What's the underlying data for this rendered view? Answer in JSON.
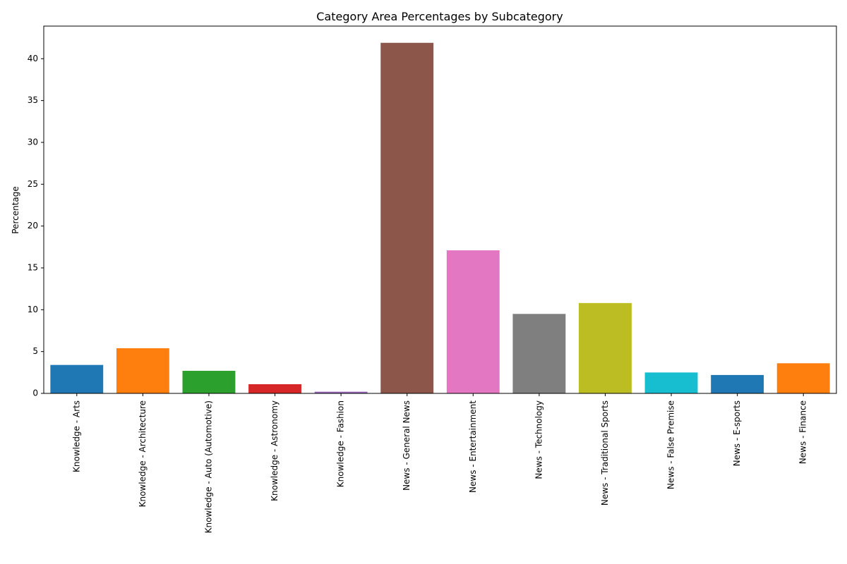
{
  "chart_data": {
    "type": "bar",
    "title": "Category Area Percentages by Subcategory",
    "xlabel": "",
    "ylabel": "Percentage",
    "ylim": [
      0,
      43.9
    ],
    "yticks": [
      0,
      5,
      10,
      15,
      20,
      25,
      30,
      35,
      40
    ],
    "grid": false,
    "categories": [
      "Knowledge - Arts",
      "Knowledge - Architecture",
      "Knowledge - Auto (Automotive)",
      "Knowledge - Astronomy",
      "Knowledge - Fashion",
      "News - General News",
      "News - Entertainment",
      "News - Technology",
      "News - Traditional Sports",
      "News - False Premise",
      "News - E-sports",
      "News - Finance"
    ],
    "values": [
      3.4,
      5.4,
      2.7,
      1.1,
      0.2,
      41.9,
      17.1,
      9.5,
      10.8,
      2.5,
      2.2,
      3.6
    ],
    "colors": [
      "#1f77b4",
      "#ff7f0e",
      "#2ca02c",
      "#d62728",
      "#9467bd",
      "#8c564b",
      "#e377c2",
      "#7f7f7f",
      "#bcbd22",
      "#17becf",
      "#1f77b4",
      "#ff7f0e"
    ]
  }
}
